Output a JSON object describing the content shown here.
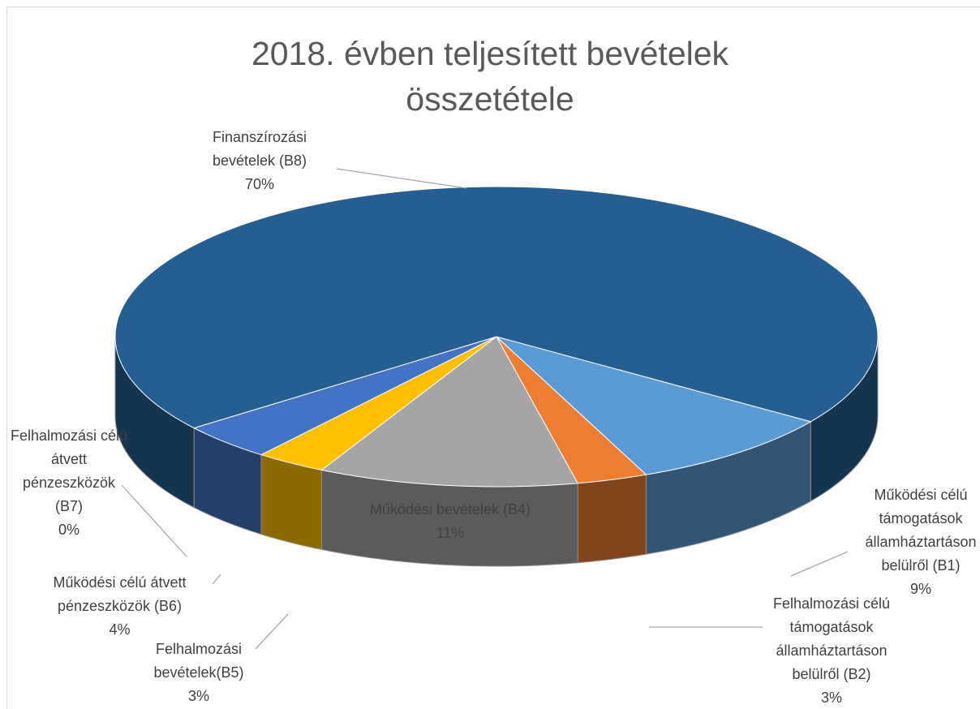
{
  "chart_data": {
    "type": "pie3d",
    "title": "2018. évben teljesített bevételek összetétele",
    "categories": [
      "Működési célú támogatások államháztartáson belülről (B1)",
      "Felhalmozási célú támogatások államháztartáson belülről (B2)",
      "Működési bevételek (B4)",
      "Felhalmozási bevételek(B5)",
      "Működési célú átvett pénzeszközök (B6)",
      "Felhalmozási célú átvett pénzeszközök (B7)",
      "Finanszírozási bevételek (B8)"
    ],
    "values": [
      9,
      3,
      11,
      3,
      4,
      0,
      70
    ],
    "value_labels": [
      "9%",
      "3%",
      "11%",
      "3%",
      "4%",
      "0%",
      "70%"
    ],
    "colors": [
      "#5b9bd5",
      "#ed7d31",
      "#a5a5a5",
      "#ffc000",
      "#4472c4",
      "#70ad47",
      "#255e91"
    ]
  }
}
